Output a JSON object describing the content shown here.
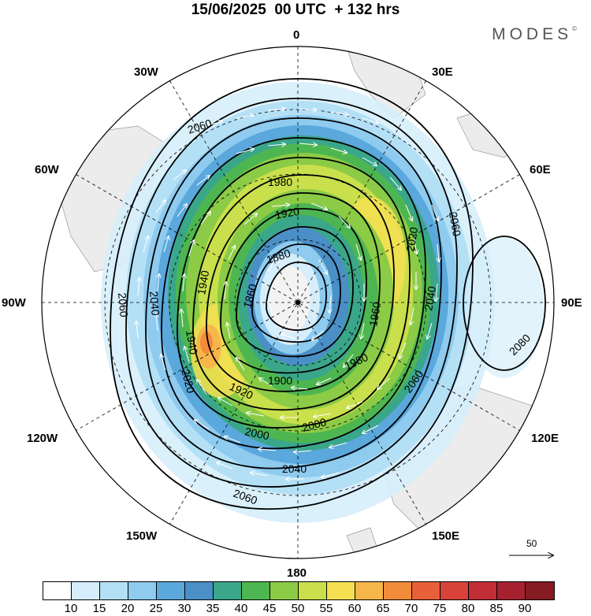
{
  "title": "15/06/2025  00 UTC  + 132 hrs",
  "brand": "MODES",
  "brand_mark": "©",
  "longitude_labels": {
    "lon_0": "0",
    "lon_30e": "30E",
    "lon_60e": "60E",
    "lon_90e": "90E",
    "lon_120e": "120E",
    "lon_150e": "150E",
    "lon_180": "180",
    "lon_150w": "150W",
    "lon_120w": "120W",
    "lon_90w": "90W",
    "lon_60w": "60W",
    "lon_30w": "30W"
  },
  "contour_labels": [
    "1860",
    "1900",
    "1920",
    "1940",
    "1960",
    "1980",
    "2000",
    "2020",
    "2040",
    "2060",
    "2080"
  ],
  "wind_reference": {
    "value": "50"
  },
  "colorbar": {
    "ticks": [
      "10",
      "15",
      "20",
      "25",
      "30",
      "35",
      "40",
      "45",
      "50",
      "55",
      "60",
      "65",
      "70",
      "75",
      "80",
      "85",
      "90"
    ],
    "colors": [
      "#ffffff",
      "#d6eefb",
      "#b4e0f6",
      "#8ecbef",
      "#5aa8dc",
      "#4a8fc6",
      "#3aa68a",
      "#4eb650",
      "#8ccb45",
      "#c9df4c",
      "#f5e052",
      "#f7b64a",
      "#f28c3a",
      "#e8603a",
      "#d8423a",
      "#c22e35",
      "#a52130",
      "#861a22"
    ]
  }
}
